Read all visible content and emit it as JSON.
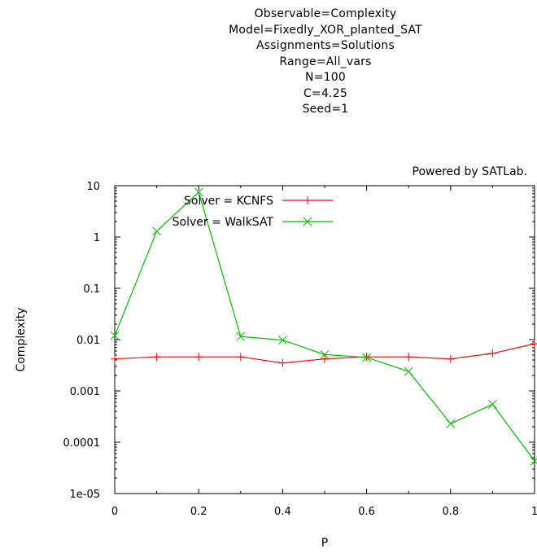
{
  "title_lines": [
    "Observable=Complexity",
    "Model=Fixedly_XOR_planted_SAT",
    "Assignments=Solutions",
    "Range=All_vars",
    "N=100",
    "C=4.25",
    "Seed=1"
  ],
  "credit": "Powered by SATLab.",
  "chart_data": {
    "type": "line",
    "xlabel": "P",
    "ylabel": "Complexity",
    "xlim": [
      0,
      1
    ],
    "ylim": [
      1e-05,
      10
    ],
    "yscale": "log",
    "grid": false,
    "legend_position": "top-left",
    "x_tick_labels": [
      "0",
      "0.2",
      "0.4",
      "0.6",
      "0.8",
      "1"
    ],
    "y_tick_labels": [
      "1e-05",
      "0.0001",
      "0.001",
      "0.01",
      "0.1",
      "1",
      "10"
    ],
    "x": [
      0,
      0.1,
      0.2,
      0.3,
      0.4,
      0.5,
      0.6,
      0.7,
      0.8,
      0.9,
      1.0
    ],
    "series": [
      {
        "name": "Solver = KCNFS",
        "color": "#ff0000",
        "marker": "plus",
        "values": [
          0.0042,
          0.0046,
          0.0046,
          0.0046,
          0.0035,
          0.0042,
          0.0046,
          0.0046,
          0.0042,
          0.0054,
          0.0083
        ]
      },
      {
        "name": "Solver = WalkSAT",
        "color": "#00c000",
        "marker": "cross",
        "values": [
          0.012,
          1.3,
          7.5,
          0.0115,
          0.0098,
          0.0051,
          0.0045,
          0.0024,
          0.00023,
          0.00055,
          4.3e-05
        ]
      }
    ]
  }
}
